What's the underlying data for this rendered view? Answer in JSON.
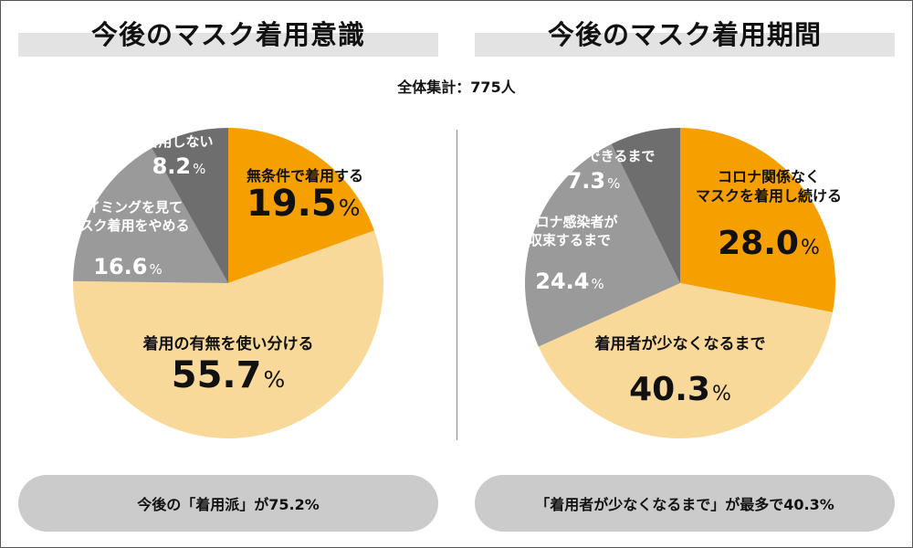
{
  "colors": {
    "orange": "#f5a000",
    "light": "#f8d99a",
    "mid": "#9a9a9a",
    "dark": "#6e6e6e",
    "highlight": "#f5a000"
  },
  "total_label": "全体集計：775人",
  "chart_data": [
    {
      "type": "pie",
      "title": "今後のマスク着用意識",
      "summary": "今後の「着用派」が75.2%",
      "slices": [
        {
          "lines": [
            "無条件で着用する"
          ],
          "value": 19.5,
          "pct": "19.5",
          "color": "#f5a000",
          "style": "orange"
        },
        {
          "lines": [
            "着用の有無を使い分ける"
          ],
          "value": 55.7,
          "pct": "55.7",
          "color": "#f8d99a",
          "style": "light"
        },
        {
          "lines": [
            "タイミングを見て",
            "マスク着用をやめる"
          ],
          "value": 16.6,
          "pct": "16.6",
          "color": "#9a9a9a",
          "style": "mid"
        },
        {
          "lines": [
            "着用しない"
          ],
          "value": 8.2,
          "pct": "8.2",
          "color": "#6e6e6e",
          "style": "dark"
        }
      ]
    },
    {
      "type": "pie",
      "title": "今後のマスク着用期間",
      "summary": "「着用者が少なくなるまで」が最多で40.3%",
      "slices": [
        {
          "lines": [
            "コロナ関係なく",
            "マスクを着用し続ける"
          ],
          "value": 28.0,
          "pct": "28.0",
          "color": "#f5a000",
          "style": "orange"
        },
        {
          "lines": [
            "着用者が少なくなるまで"
          ],
          "value": 40.3,
          "pct": "40.3",
          "color": "#f8d99a",
          "style": "light"
        },
        {
          "lines": [
            "コロナ感染者が",
            "収束するまで"
          ],
          "value": 24.4,
          "pct": "24.4",
          "color": "#9a9a9a",
          "style": "mid"
        },
        {
          "lines": [
            "特効薬ができるまで"
          ],
          "value": 7.3,
          "pct": "7.3",
          "color": "#6e6e6e",
          "style": "dark"
        }
      ]
    }
  ]
}
